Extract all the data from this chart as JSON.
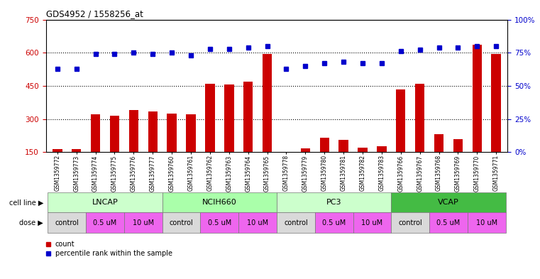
{
  "title": "GDS4952 / 1558256_at",
  "samples": [
    "GSM1359772",
    "GSM1359773",
    "GSM1359774",
    "GSM1359775",
    "GSM1359776",
    "GSM1359777",
    "GSM1359760",
    "GSM1359761",
    "GSM1359762",
    "GSM1359763",
    "GSM1359764",
    "GSM1359765",
    "GSM1359778",
    "GSM1359779",
    "GSM1359780",
    "GSM1359781",
    "GSM1359782",
    "GSM1359783",
    "GSM1359766",
    "GSM1359767",
    "GSM1359768",
    "GSM1359769",
    "GSM1359770",
    "GSM1359771"
  ],
  "counts": [
    165,
    163,
    320,
    315,
    340,
    335,
    325,
    320,
    460,
    455,
    470,
    595,
    152,
    168,
    215,
    205,
    170,
    175,
    435,
    460,
    230,
    210,
    635,
    595
  ],
  "percentile_ranks": [
    63,
    63,
    74,
    74,
    75,
    74,
    75,
    73,
    78,
    78,
    79,
    80,
    63,
    65,
    67,
    68,
    67,
    67,
    76,
    77,
    79,
    79,
    80,
    80
  ],
  "cell_lines": [
    "LNCAP",
    "NCIH660",
    "PC3",
    "VCAP"
  ],
  "cell_line_bg": [
    "#ccffcc",
    "#aaffaa",
    "#ccffcc",
    "#44dd44"
  ],
  "doses": [
    "control",
    "0.5 uM",
    "10 uM",
    "control",
    "0.5 uM",
    "10 uM",
    "control",
    "0.5 uM",
    "10 uM",
    "control",
    "0.5 uM",
    "10 uM"
  ],
  "dose_bg": [
    "#d9d9d9",
    "#ee66ee",
    "#ee66ee",
    "#d9d9d9",
    "#ee66ee",
    "#ee66ee",
    "#d9d9d9",
    "#ee66ee",
    "#ee66ee",
    "#d9d9d9",
    "#ee66ee",
    "#ee66ee"
  ],
  "bar_color": "#cc0000",
  "dot_color": "#0000cc",
  "left_ylim": [
    150,
    750
  ],
  "left_yticks": [
    150,
    300,
    450,
    600,
    750
  ],
  "right_yticks": [
    0,
    25,
    50,
    75,
    100
  ],
  "right_yticklabels": [
    "0%",
    "25%",
    "50%",
    "75%",
    "100%"
  ],
  "grid_lines": [
    300,
    450,
    600
  ],
  "tick_color_left": "#cc0000",
  "tick_color_right": "#0000cc",
  "bar_width": 0.5
}
